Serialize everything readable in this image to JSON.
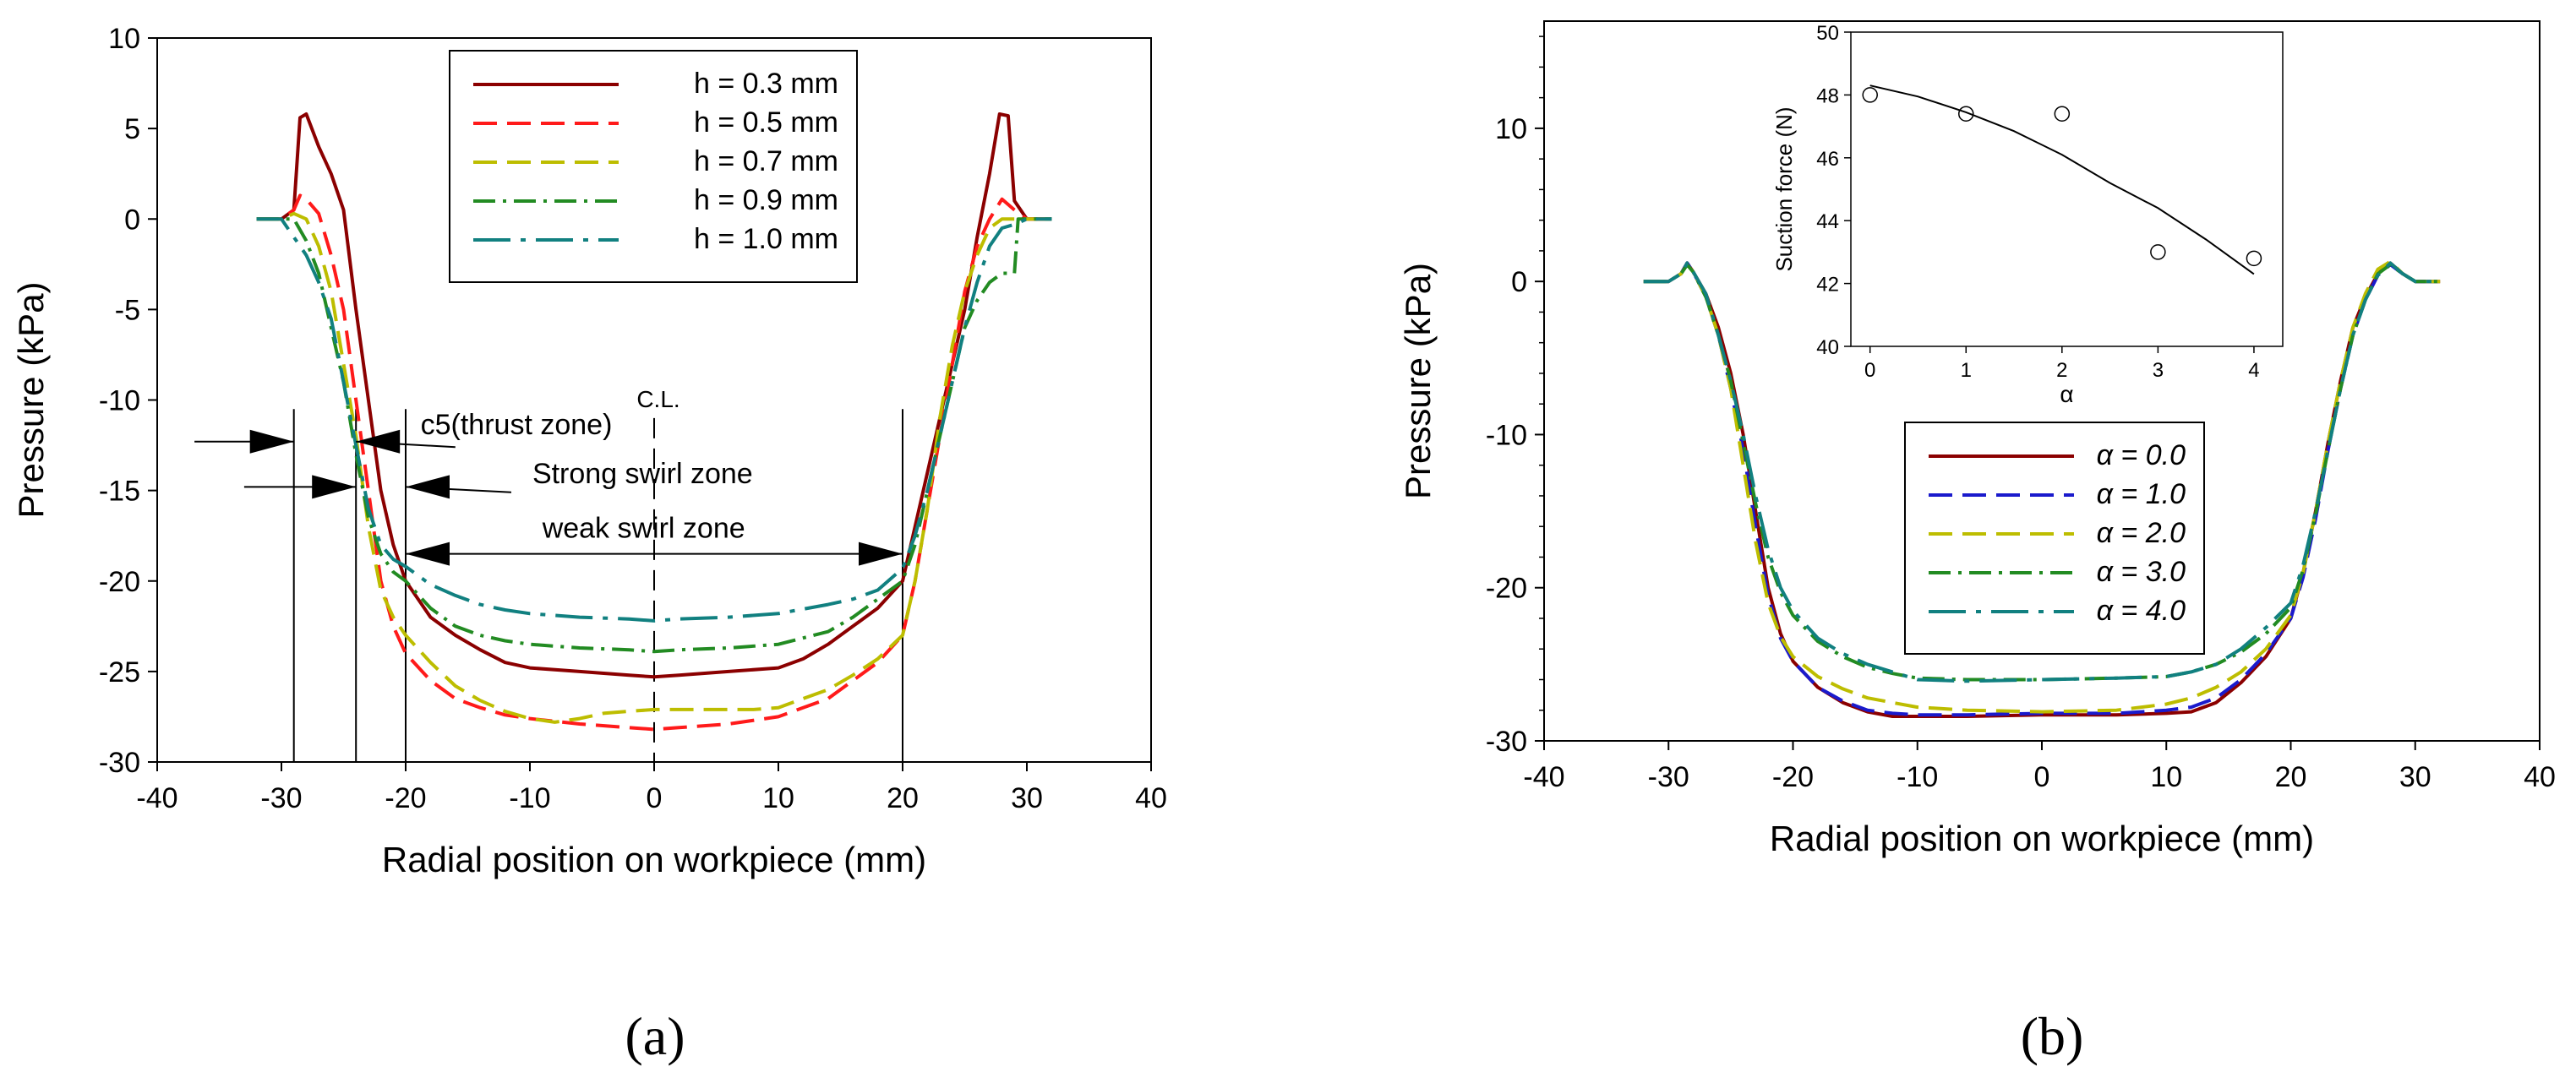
{
  "panel_labels": [
    "(a)",
    "(b)"
  ],
  "chart_data": [
    {
      "type": "line",
      "panel": "(a)",
      "title": "",
      "xlabel": "Radial position on workpiece (mm)",
      "ylabel": "Pressure (kPa)",
      "xlim": [
        -40,
        40
      ],
      "ylim": [
        -30,
        10
      ],
      "xticks": [
        -40,
        -30,
        -20,
        -10,
        0,
        10,
        20,
        30,
        40
      ],
      "yticks": [
        -30,
        -25,
        -20,
        -15,
        -10,
        -5,
        0,
        5,
        10
      ],
      "grid": false,
      "legend": "top-center",
      "series": [
        {
          "name": "h = 0.3 mm",
          "color": "#8b0000",
          "dash": "solid",
          "x": [
            -32,
            -30,
            -29,
            -28.5,
            -28,
            -27,
            -26,
            -25,
            -24,
            -23,
            -22,
            -21,
            -20,
            -18,
            -16,
            -14,
            -12,
            -10,
            -6,
            -2,
            0,
            2,
            6,
            10,
            12,
            14,
            16,
            18,
            20,
            21,
            22,
            23,
            24,
            25,
            26,
            27,
            27.8,
            28.5,
            29,
            30,
            32
          ],
          "y": [
            0,
            0,
            0.5,
            5.6,
            5.8,
            4,
            2.5,
            0.5,
            -5,
            -10,
            -15,
            -18,
            -20,
            -22,
            -23,
            -23.8,
            -24.5,
            -24.8,
            -25,
            -25.2,
            -25.3,
            -25.2,
            -25,
            -24.8,
            -24.3,
            -23.5,
            -22.5,
            -21.5,
            -20,
            -17,
            -14,
            -11,
            -8,
            -5,
            -1,
            2.5,
            5.8,
            5.7,
            1,
            0,
            0
          ]
        },
        {
          "name": "h = 0.5 mm",
          "color": "#ff1a1a",
          "dash": "dash",
          "x": [
            -32,
            -30,
            -29,
            -28.5,
            -28,
            -27,
            -26,
            -25,
            -24,
            -23,
            -22,
            -21,
            -20,
            -18,
            -16,
            -14,
            -12,
            -10,
            -6,
            -2,
            0,
            2,
            6,
            10,
            14,
            16,
            18,
            20,
            21,
            22,
            23,
            24,
            25,
            26,
            27,
            28,
            29,
            30,
            32
          ],
          "y": [
            0,
            0,
            0.5,
            1.3,
            1.1,
            0.3,
            -2,
            -5,
            -10,
            -15,
            -20,
            -22.5,
            -24,
            -25.5,
            -26.5,
            -27,
            -27.4,
            -27.6,
            -27.9,
            -28.1,
            -28.2,
            -28.1,
            -27.9,
            -27.5,
            -26.5,
            -25.5,
            -24.5,
            -23,
            -20,
            -16,
            -12,
            -8,
            -4,
            -1.5,
            0,
            1.1,
            0.5,
            0,
            0
          ]
        },
        {
          "name": "h = 0.7 mm",
          "color": "#bdbd00",
          "dash": "dash",
          "x": [
            -32,
            -30,
            -29,
            -28,
            -27,
            -26,
            -25,
            -24,
            -23,
            -22,
            -21,
            -20,
            -18,
            -16,
            -14,
            -12,
            -10,
            -8,
            -6,
            -4,
            -2,
            0,
            2,
            4,
            6,
            8,
            10,
            12,
            14,
            16,
            18,
            20,
            21,
            22,
            23,
            24,
            25,
            26,
            27,
            28,
            29,
            30,
            32
          ],
          "y": [
            0,
            0,
            0.3,
            0,
            -1.5,
            -4,
            -8,
            -12,
            -17,
            -20.5,
            -22,
            -23,
            -24.5,
            -25.8,
            -26.6,
            -27.2,
            -27.6,
            -27.8,
            -27.6,
            -27.3,
            -27.2,
            -27.1,
            -27.1,
            -27.1,
            -27.1,
            -27.1,
            -27,
            -26.5,
            -26,
            -25.2,
            -24.3,
            -23,
            -20,
            -16,
            -11,
            -7,
            -4,
            -2,
            -0.5,
            0,
            0,
            0,
            0
          ]
        },
        {
          "name": "h = 0.9 mm",
          "color": "#228b22",
          "dash": "dashdot",
          "x": [
            -32,
            -30,
            -29,
            -28,
            -27,
            -26,
            -25,
            -24,
            -23,
            -22,
            -21,
            -20,
            -18,
            -16,
            -14,
            -12,
            -10,
            -6,
            -2,
            0,
            2,
            6,
            10,
            14,
            16,
            18,
            20,
            21,
            22,
            23,
            24,
            25,
            26,
            27,
            28,
            29,
            29.3,
            30,
            32
          ],
          "y": [
            0,
            0,
            0,
            -1.2,
            -3,
            -6,
            -9,
            -13,
            -16.5,
            -18.5,
            -19.5,
            -20,
            -21.5,
            -22.5,
            -23,
            -23.3,
            -23.5,
            -23.7,
            -23.8,
            -23.9,
            -23.8,
            -23.7,
            -23.5,
            -22.8,
            -22,
            -21,
            -20,
            -18,
            -15,
            -12,
            -9,
            -6,
            -4.5,
            -3.5,
            -3,
            -3,
            0,
            0,
            0
          ]
        },
        {
          "name": "h = 1.0 mm",
          "color": "#118080",
          "dash": "longdash",
          "x": [
            -32,
            -30,
            -29,
            -28,
            -27,
            -26,
            -25,
            -24,
            -23,
            -22,
            -21,
            -20,
            -18,
            -16,
            -14,
            -12,
            -10,
            -6,
            -2,
            0,
            2,
            6,
            10,
            14,
            16,
            18,
            20,
            21,
            22,
            23,
            24,
            25,
            26,
            27,
            28,
            29,
            30,
            32
          ],
          "y": [
            0,
            0,
            -1,
            -2,
            -3.5,
            -5.5,
            -9,
            -12.5,
            -16,
            -18,
            -18.8,
            -19.2,
            -20.2,
            -20.8,
            -21.3,
            -21.6,
            -21.8,
            -22,
            -22.1,
            -22.2,
            -22.1,
            -22,
            -21.8,
            -21.3,
            -21,
            -20.5,
            -19.3,
            -17.5,
            -15,
            -12,
            -9,
            -6,
            -3.5,
            -1.5,
            -0.5,
            -0.3,
            0,
            0
          ]
        }
      ],
      "annotations": {
        "centerline_label": "C.L.",
        "thrust_zone": "c5(thrust zone)",
        "strong_swirl": "Strong swirl zone",
        "weak_swirl": "weak swirl zone"
      }
    },
    {
      "type": "line",
      "panel": "(b)",
      "title": "",
      "xlabel": "Radial position on workpiece (mm)",
      "ylabel": "Pressure (kPa)",
      "xlim": [
        -40,
        40
      ],
      "ylim": [
        -30,
        17
      ],
      "xticks": [
        -40,
        -30,
        -20,
        -10,
        0,
        10,
        20,
        30,
        40
      ],
      "yticks": [
        -30,
        -20,
        -10,
        0,
        10
      ],
      "grid": false,
      "legend": "bottom-center",
      "series": [
        {
          "name": "α = 0.0",
          "color": "#8b0000",
          "dash": "solid",
          "x": [
            -32,
            -30,
            -29,
            -28.5,
            -28,
            -27,
            -26,
            -25,
            -24,
            -23,
            -22,
            -21,
            -20,
            -18,
            -16,
            -14,
            -12,
            -10,
            -6,
            0,
            6,
            10,
            12,
            14,
            16,
            18,
            20,
            21,
            22,
            23,
            24,
            25,
            26,
            27,
            28,
            29,
            30,
            32
          ],
          "y": [
            0,
            0,
            0.5,
            1.2,
            0.6,
            -0.8,
            -3,
            -6,
            -10,
            -15,
            -20,
            -23,
            -24.8,
            -26.5,
            -27.5,
            -28.1,
            -28.4,
            -28.4,
            -28.4,
            -28.3,
            -28.3,
            -28.2,
            -28.1,
            -27.5,
            -26.2,
            -24.5,
            -22,
            -19,
            -15,
            -10.5,
            -6.5,
            -3,
            -1,
            0.5,
            1.2,
            0.5,
            0,
            0
          ]
        },
        {
          "name": "α = 1.0",
          "color": "#1a1acc",
          "dash": "dash",
          "x": [
            -32,
            -30,
            -29,
            -28.5,
            -28,
            -27,
            -26,
            -25,
            -24,
            -23,
            -22,
            -21,
            -20,
            -18,
            -16,
            -14,
            -12,
            -10,
            -6,
            0,
            6,
            10,
            12,
            14,
            16,
            18,
            20,
            21,
            22,
            23,
            24,
            25,
            26,
            27,
            28,
            29,
            30,
            32
          ],
          "y": [
            0,
            0,
            0.5,
            1.2,
            0.6,
            -1,
            -3.5,
            -7,
            -11,
            -16,
            -20.5,
            -23.3,
            -24.8,
            -26.5,
            -27.4,
            -28,
            -28.2,
            -28.3,
            -28.3,
            -28.2,
            -28.2,
            -28,
            -27.8,
            -27.2,
            -26,
            -24.3,
            -22,
            -19.3,
            -15.5,
            -11,
            -7,
            -3.5,
            -1.2,
            0.4,
            1.1,
            0.5,
            0,
            0
          ]
        },
        {
          "name": "α = 2.0",
          "color": "#bdbd00",
          "dash": "dash",
          "x": [
            -32,
            -30,
            -29,
            -28.5,
            -28,
            -27,
            -26,
            -25,
            -24,
            -23,
            -22,
            -21,
            -20,
            -18,
            -16,
            -14,
            -12,
            -10,
            -6,
            0,
            6,
            10,
            12,
            14,
            16,
            18,
            20,
            21,
            22,
            23,
            24,
            25,
            26,
            27,
            28,
            29,
            30,
            32
          ],
          "y": [
            0,
            0,
            0.5,
            1.1,
            0.6,
            -1,
            -3.5,
            -7,
            -12,
            -17,
            -21,
            -23.2,
            -24.5,
            -25.8,
            -26.6,
            -27.2,
            -27.5,
            -27.8,
            -28,
            -28.1,
            -28,
            -27.6,
            -27.2,
            -26.5,
            -25.5,
            -24,
            -21.8,
            -19,
            -15,
            -10.5,
            -6.5,
            -3,
            -0.8,
            0.8,
            1.3,
            0.5,
            0,
            0
          ]
        },
        {
          "name": "α = 3.0",
          "color": "#228b22",
          "dash": "dashdot",
          "x": [
            -32,
            -30,
            -29,
            -28.5,
            -28,
            -27,
            -26,
            -25,
            -24,
            -23,
            -22,
            -21,
            -20,
            -18,
            -16,
            -14,
            -12,
            -10,
            -6,
            0,
            6,
            10,
            12,
            14,
            16,
            18,
            20,
            21,
            22,
            23,
            24,
            25,
            26,
            27,
            28,
            29,
            30,
            32
          ],
          "y": [
            0,
            0,
            0.5,
            1.1,
            0.6,
            -1,
            -3.5,
            -6.5,
            -10.5,
            -14.5,
            -18,
            -20.3,
            -21.8,
            -23.5,
            -24.5,
            -25.2,
            -25.6,
            -25.9,
            -26,
            -26,
            -25.9,
            -25.8,
            -25.5,
            -25,
            -24.2,
            -23,
            -21.3,
            -18.8,
            -15.2,
            -11,
            -7,
            -3.5,
            -1.2,
            0.5,
            1.1,
            0.5,
            0,
            0
          ]
        },
        {
          "name": "α = 4.0",
          "color": "#118080",
          "dash": "longdash",
          "x": [
            -32,
            -30,
            -29,
            -28.5,
            -28,
            -27,
            -26,
            -25,
            -24,
            -23,
            -22,
            -21,
            -20,
            -18,
            -16,
            -14,
            -12,
            -10,
            -6,
            0,
            6,
            10,
            12,
            14,
            16,
            18,
            20,
            21,
            22,
            23,
            24,
            25,
            26,
            27,
            28,
            29,
            30,
            32
          ],
          "y": [
            0,
            0,
            0.5,
            1.2,
            0.6,
            -0.8,
            -3.5,
            -6.5,
            -10,
            -14,
            -17.5,
            -20,
            -21.5,
            -23.3,
            -24.3,
            -25,
            -25.5,
            -26,
            -26.1,
            -26,
            -25.9,
            -25.8,
            -25.5,
            -25,
            -24,
            -22.6,
            -21,
            -18.5,
            -15,
            -11,
            -7,
            -3.5,
            -1.2,
            0.4,
            1.2,
            0.5,
            0,
            0
          ]
        }
      ],
      "inset": {
        "type": "scatter",
        "xlabel": "α",
        "ylabel": "Suction force (N)",
        "xlim": [
          -0.2,
          4.3
        ],
        "ylim": [
          40,
          50
        ],
        "xticks": [
          0,
          1,
          2,
          3,
          4
        ],
        "yticks": [
          40,
          42,
          44,
          46,
          48,
          50
        ],
        "points": {
          "x": [
            0,
            1,
            2,
            3,
            4
          ],
          "y": [
            48,
            47.4,
            47.4,
            43,
            42.8
          ]
        },
        "fit_curve": {
          "x": [
            0,
            0.5,
            1,
            1.5,
            2,
            2.5,
            3,
            3.5,
            4
          ],
          "y": [
            48.3,
            47.95,
            47.45,
            46.85,
            46.1,
            45.2,
            44.4,
            43.4,
            42.3
          ]
        }
      }
    }
  ]
}
